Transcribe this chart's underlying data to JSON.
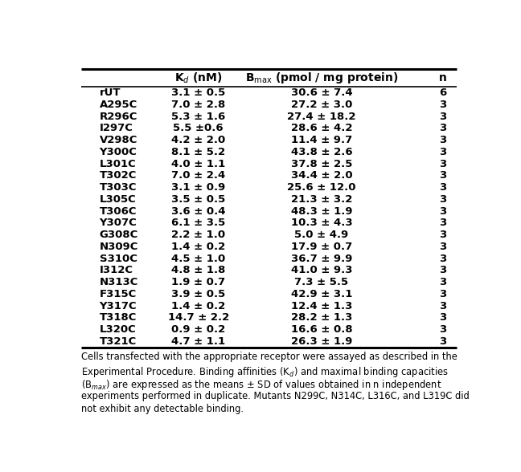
{
  "rows": [
    [
      "rUT",
      "3.1 ± 0.5",
      "30.6 ± 7.4",
      "6"
    ],
    [
      "A295C",
      "7.0 ± 2.8",
      "27.2 ± 3.0",
      "3"
    ],
    [
      "R296C",
      "5.3 ± 1.6",
      "27.4 ± 18.2",
      "3"
    ],
    [
      "I297C",
      "5.5 ±0.6",
      "28.6 ± 4.2",
      "3"
    ],
    [
      "V298C",
      "4.2 ± 2.0",
      "11.4 ± 9.7",
      "3"
    ],
    [
      "Y300C",
      "8.1 ± 5.2",
      "43.8 ± 2.6",
      "3"
    ],
    [
      "L301C",
      "4.0 ± 1.1",
      "37.8 ± 2.5",
      "3"
    ],
    [
      "T302C",
      "7.0 ± 2.4",
      "34.4 ± 2.0",
      "3"
    ],
    [
      "T303C",
      "3.1 ± 0.9",
      "25.6 ± 12.0",
      "3"
    ],
    [
      "L305C",
      "3.5 ± 0.5",
      "21.3 ± 3.2",
      "3"
    ],
    [
      "T306C",
      "3.6 ± 0.4",
      "48.3 ± 1.9",
      "3"
    ],
    [
      "Y307C",
      "6.1 ± 3.5",
      "10.3 ± 4.3",
      "3"
    ],
    [
      "G308C",
      "2.2 ± 1.0",
      "5.0 ± 4.9",
      "3"
    ],
    [
      "N309C",
      "1.4 ± 0.2",
      "17.9 ± 0.7",
      "3"
    ],
    [
      "S310C",
      "4.5 ± 1.0",
      "36.7 ± 9.9",
      "3"
    ],
    [
      "I312C",
      "4.8 ± 1.8",
      "41.0 ± 9.3",
      "3"
    ],
    [
      "N313C",
      "1.9 ± 0.7",
      "7.3 ± 5.5",
      "3"
    ],
    [
      "F315C",
      "3.9 ± 0.5",
      "42.9 ± 3.1",
      "3"
    ],
    [
      "Y317C",
      "1.4 ± 0.2",
      "12.4 ± 1.3",
      "3"
    ],
    [
      "T318C",
      "14.7 ± 2.2",
      "28.2 ± 1.3",
      "3"
    ],
    [
      "L320C",
      "0.9 ± 0.2",
      "16.6 ± 0.8",
      "3"
    ],
    [
      "T321C",
      "4.7 ± 1.1",
      "26.3 ± 1.9",
      "3"
    ]
  ],
  "footnote_lines": [
    "Cells transfected with the appropriate receptor were assayed as described in the",
    "Experimental Procedure. Binding affinities (K$_d$) and maximal binding capacities",
    "(B$_{max}$) are expressed as the means ± SD of values obtained in n independent",
    "experiments performed in duplicate. Mutants N299C, N314C, L316C, and L319C did",
    "not exhibit any detectable binding."
  ],
  "bg_color": "#ffffff",
  "line_color": "#000000",
  "text_color": "#000000",
  "font_size": 9.5,
  "header_font_size": 10
}
